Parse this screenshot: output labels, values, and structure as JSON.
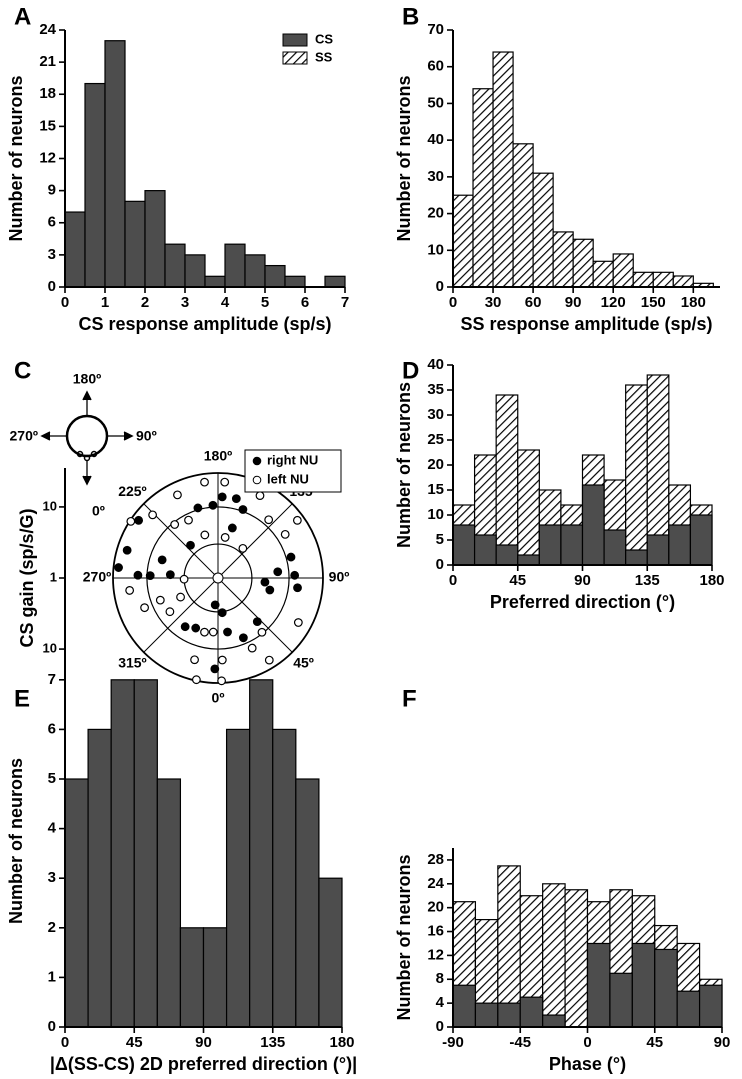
{
  "chart_data": [
    {
      "label": "A",
      "type": "histogram",
      "xlabel": "CS response amplitude (sp/s)",
      "ylabel": "Number of neurons",
      "bins": [
        0,
        0.5,
        1,
        1.5,
        2,
        2.5,
        3,
        3.5,
        4,
        4.5,
        5,
        5.5,
        6,
        6.5,
        7
      ],
      "series": [
        {
          "name": "CS",
          "pattern": "solid",
          "color": "#4d4d4d",
          "values": [
            7,
            19,
            23,
            8,
            9,
            4,
            3,
            1,
            4,
            3,
            2,
            1,
            0,
            1
          ]
        }
      ],
      "legend": [
        {
          "name": "CS",
          "pattern": "solid",
          "color": "#4d4d4d"
        },
        {
          "name": "SS",
          "pattern": "hatch",
          "color": "#000000"
        }
      ],
      "legend_position": "upper right",
      "xlim": [
        0,
        7
      ],
      "xticks": [
        0,
        1,
        2,
        3,
        4,
        5,
        6,
        7
      ],
      "ylim": [
        0,
        24
      ],
      "yticks": [
        0,
        3,
        6,
        9,
        12,
        15,
        18,
        21,
        24
      ]
    },
    {
      "label": "B",
      "type": "histogram",
      "xlabel": "SS response amplitude (sp/s)",
      "ylabel": "Number of neurons",
      "bins": [
        0,
        15,
        30,
        45,
        60,
        75,
        90,
        105,
        120,
        135,
        150,
        165,
        180,
        195
      ],
      "series": [
        {
          "pattern": "hatch",
          "color": "#000000",
          "values": [
            25,
            54,
            64,
            39,
            31,
            15,
            13,
            7,
            9,
            4,
            4,
            3,
            1
          ]
        }
      ],
      "xlim": [
        0,
        200
      ],
      "xticks": [
        0,
        30,
        60,
        90,
        120,
        150,
        180
      ],
      "ylim": [
        0,
        70
      ],
      "yticks": [
        0,
        10,
        20,
        30,
        40,
        50,
        60,
        70
      ]
    },
    {
      "label": "C",
      "type": "polar",
      "ylabel": "CS gain (sp/s/G)",
      "rscale": "log",
      "rlim": [
        1,
        30
      ],
      "rticks": [
        1,
        10
      ],
      "rgrid": [
        3,
        10,
        30
      ],
      "angle_ticks": [
        {
          "value": 180,
          "label": "180º"
        },
        {
          "value": 135,
          "label": "135º"
        },
        {
          "value": 90,
          "label": "90º"
        },
        {
          "value": 45,
          "label": "45º"
        },
        {
          "value": 0,
          "label": "0º"
        },
        {
          "value": 315,
          "label": "315º"
        },
        {
          "value": 270,
          "label": "270º"
        },
        {
          "value": 225,
          "label": "225º"
        }
      ],
      "inset_labels": [
        "180º",
        "90º",
        "0º",
        "270º"
      ],
      "legend_position": "upper right",
      "series": [
        {
          "name": "right NU",
          "marker": "filled",
          "color": "#000000",
          "angle": [
            196,
            184,
            164,
            160,
            220,
            252,
            268,
            253,
            264,
            268,
            266,
            85,
            96,
            92,
            106,
            83,
            77,
            354,
            7,
            336,
            10,
            23,
            42,
            358,
            234,
            326,
            177,
            167
          ],
          "gain": [
            10.6,
            10.6,
            5.4,
            10.6,
            4.0,
            6.7,
            9.0,
            21.7,
            25.5,
            13.4,
            4.7,
            4.6,
            7,
            12,
            11.7,
            13.4,
            5.6,
            2.4,
            3.1,
            5.9,
            5.9,
            8.2,
            6.7,
            19,
            24,
            6.7,
            13.9,
            14
          ]
        },
        {
          "name": "left NU",
          "marker": "open",
          "color": "#000000",
          "angle": [
            206,
            188,
            176,
            153,
            237,
            226,
            219,
            207,
            197,
            170,
            140,
            139,
            123,
            126,
            292,
            291,
            305,
            297,
            272,
            278,
            346,
            355,
            3,
            26,
            39,
            32,
            61,
            344,
            2,
            348
          ],
          "gain": [
            20,
            23,
            22.5,
            20,
            29,
            19,
            9.3,
            8.2,
            4.3,
            3.8,
            3.5,
            12.2,
            13.4,
            24,
            13,
            7.4,
            6.7,
            3.9,
            3,
            18,
            6.1,
            5.8,
            14.3,
            12.5,
            9.6,
            23,
            19.6,
            15.7,
            28,
            29
          ]
        }
      ]
    },
    {
      "label": "D",
      "type": "histogram",
      "xlabel": "Preferred direction (°)",
      "ylabel": "Number of neurons",
      "bins": [
        0,
        15,
        30,
        45,
        60,
        75,
        90,
        105,
        120,
        135,
        150,
        165,
        180
      ],
      "series": [
        {
          "pattern": "hatch",
          "color": "#000000",
          "values": [
            12,
            22,
            34,
            23,
            15,
            12,
            22,
            17,
            36,
            38,
            16,
            12
          ]
        },
        {
          "pattern": "solid",
          "color": "#4d4d4d",
          "values": [
            8,
            6,
            4,
            2,
            8,
            8,
            16,
            7,
            3,
            6,
            8,
            10
          ]
        }
      ],
      "xlim": [
        0,
        180
      ],
      "xticks": [
        0,
        45,
        90,
        135,
        180
      ],
      "ylim": [
        0,
        40
      ],
      "yticks": [
        0,
        5,
        10,
        15,
        20,
        25,
        30,
        35,
        40
      ]
    },
    {
      "label": "E",
      "type": "histogram",
      "xlabel": "|Δ(SS-CS) 2D preferred direction (°)|",
      "ylabel": "Number of neurons",
      "bins": [
        0,
        15,
        30,
        45,
        60,
        75,
        90,
        105,
        120,
        135,
        150,
        165,
        180
      ],
      "series": [
        {
          "pattern": "solid",
          "color": "#4d4d4d",
          "values": [
            5,
            6,
            7,
            7,
            5,
            2,
            2,
            6,
            7,
            6,
            5,
            3
          ]
        }
      ],
      "xlim": [
        0,
        180
      ],
      "xticks": [
        0,
        45,
        90,
        135,
        180
      ],
      "ylim": [
        0,
        7.5
      ],
      "yticks": [
        0,
        1,
        2,
        3,
        4,
        5,
        6,
        7
      ]
    },
    {
      "label": "F",
      "type": "histogram",
      "xlabel": "Phase (°)",
      "ylabel": "Number of neurons",
      "bins": [
        -90,
        -75,
        -60,
        -45,
        -30,
        -15,
        0,
        15,
        30,
        45,
        60,
        75,
        90
      ],
      "series": [
        {
          "pattern": "hatch",
          "color": "#000000",
          "values": [
            21,
            18,
            27,
            22,
            24,
            23,
            21,
            23,
            22,
            17,
            14,
            8
          ]
        },
        {
          "pattern": "solid",
          "color": "#4d4d4d",
          "values": [
            7,
            4,
            4,
            5,
            2,
            0,
            14,
            9,
            14,
            13,
            6,
            7
          ]
        }
      ],
      "xlim": [
        -90,
        90
      ],
      "xticks": [
        -90,
        -45,
        0,
        45,
        90
      ],
      "ylim": [
        0,
        30
      ],
      "yticks": [
        0,
        4,
        8,
        12,
        16,
        20,
        24,
        28
      ]
    }
  ]
}
